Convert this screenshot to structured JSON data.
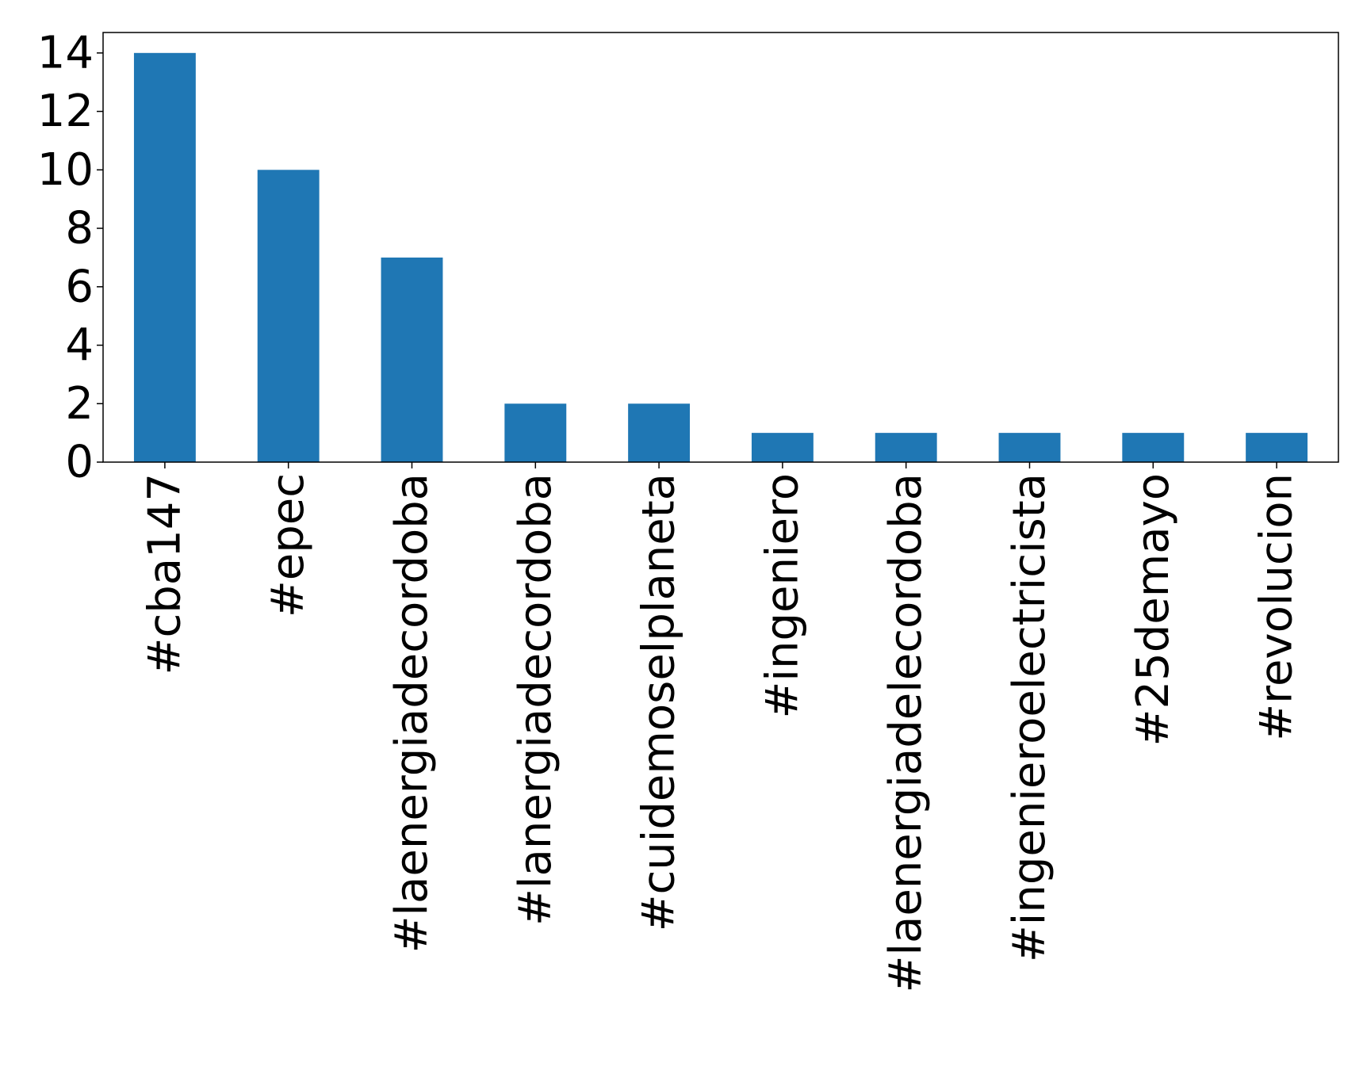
{
  "chart_data": {
    "type": "bar",
    "title": "",
    "xlabel": "",
    "ylabel": "",
    "categories": [
      "#cba147",
      "#epec",
      "#laenergiadecordoba",
      "#lanergiadecordoba",
      "#cuidemoselplaneta",
      "#ingeniero",
      "#laenergiadelecordoba",
      "#ingenieroelectricista",
      "#25demayo",
      "#revolucion"
    ],
    "values": [
      14,
      10,
      7,
      2,
      2,
      1,
      1,
      1,
      1,
      1
    ],
    "ylim": [
      0,
      14.7
    ],
    "yticks": [
      "0",
      "2",
      "4",
      "6",
      "8",
      "10",
      "12",
      "14"
    ],
    "bar_color": "#1f77b4",
    "grid": false,
    "legend": "none"
  }
}
